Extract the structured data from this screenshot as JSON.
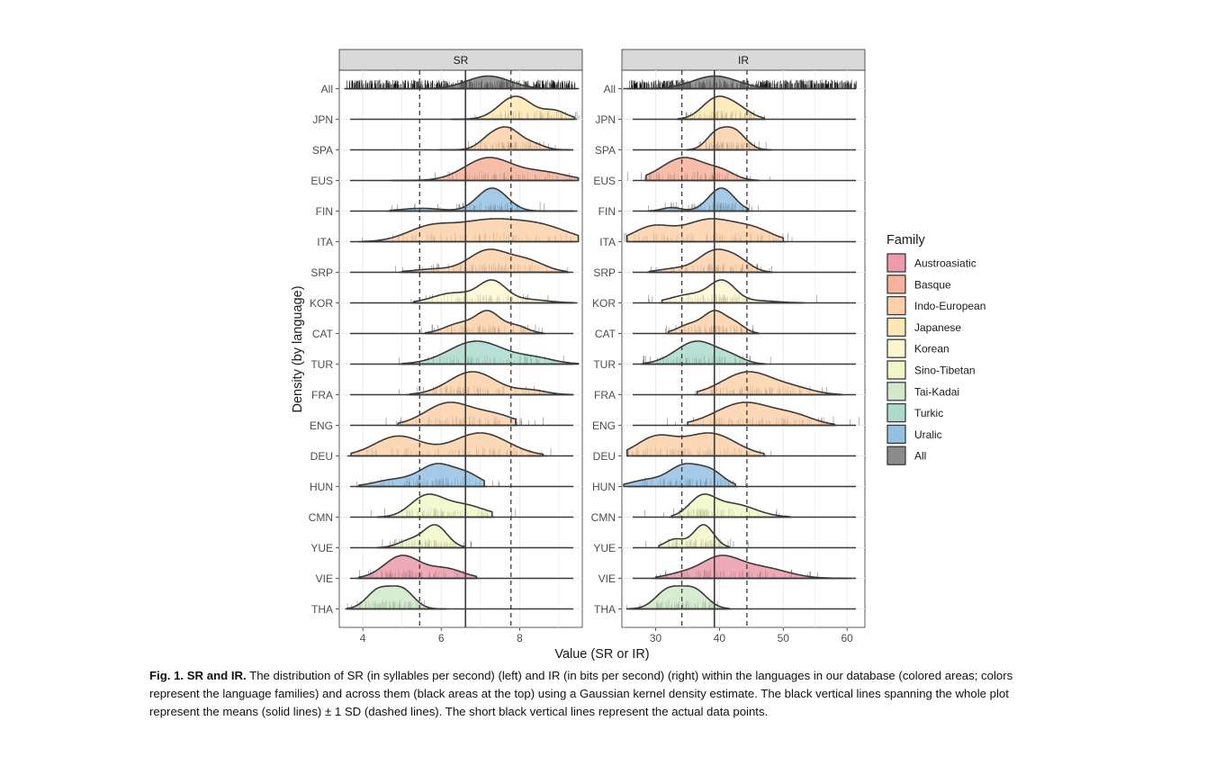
{
  "chart_data": [
    {
      "type": "ridgeline-density",
      "panel_title": "SR",
      "xlim": [
        3.4,
        9.6
      ],
      "x_ticks": [
        4,
        6,
        8
      ],
      "mean": 6.62,
      "mean_minus_sd": 5.45,
      "mean_plus_sd": 7.78,
      "series": [
        {
          "label": "All",
          "family": "All",
          "peaks": [
            [
              7.2,
              0.55,
              1.0
            ]
          ],
          "range": [
            3.6,
            9.5
          ]
        },
        {
          "label": "JPN",
          "family": "Japanese",
          "peaks": [
            [
              7.9,
              0.42,
              1.0
            ],
            [
              8.9,
              0.3,
              0.35
            ]
          ],
          "range": [
            6.3,
            9.4
          ]
        },
        {
          "label": "SPA",
          "family": "Indo-European",
          "peaks": [
            [
              7.3,
              0.3,
              0.75
            ],
            [
              7.75,
              0.28,
              0.9
            ],
            [
              8.3,
              0.3,
              0.35
            ]
          ],
          "range": [
            6.0,
            9.3
          ]
        },
        {
          "label": "EUS",
          "family": "Basque",
          "peaks": [
            [
              7.2,
              0.6,
              0.55
            ],
            [
              8.6,
              0.6,
              0.2
            ]
          ],
          "range": [
            4.8,
            9.5
          ]
        },
        {
          "label": "FIN",
          "family": "Uralic",
          "peaks": [
            [
              7.3,
              0.38,
              1.0
            ],
            [
              5.5,
              0.5,
              0.12
            ]
          ],
          "range": [
            4.7,
            9.4
          ]
        },
        {
          "label": "ITA",
          "family": "Indo-European",
          "peaks": [
            [
              5.7,
              0.6,
              0.2
            ],
            [
              7.2,
              0.8,
              0.3
            ],
            [
              8.6,
              0.7,
              0.2
            ]
          ],
          "range": [
            4.0,
            9.5
          ]
        },
        {
          "label": "SRP",
          "family": "Indo-European",
          "peaks": [
            [
              7.2,
              0.5,
              0.7
            ],
            [
              8.2,
              0.45,
              0.35
            ],
            [
              5.8,
              0.5,
              0.1
            ]
          ],
          "range": [
            5.0,
            9.2
          ]
        },
        {
          "label": "KOR",
          "family": "Korean",
          "peaks": [
            [
              7.3,
              0.35,
              0.75
            ],
            [
              6.3,
              0.5,
              0.35
            ],
            [
              8.2,
              0.5,
              0.12
            ]
          ],
          "range": [
            5.3,
            9.4
          ]
        },
        {
          "label": "CAT",
          "family": "Indo-European",
          "peaks": [
            [
              7.2,
              0.3,
              0.8
            ],
            [
              6.5,
              0.4,
              0.4
            ],
            [
              7.9,
              0.3,
              0.3
            ]
          ],
          "range": [
            5.6,
            8.6
          ]
        },
        {
          "label": "TUR",
          "family": "Turkic",
          "peaks": [
            [
              6.9,
              0.7,
              0.5
            ],
            [
              8.4,
              0.5,
              0.12
            ]
          ],
          "range": [
            5.0,
            9.5
          ]
        },
        {
          "label": "FRA",
          "family": "Indo-European",
          "peaks": [
            [
              6.8,
              0.6,
              0.55
            ],
            [
              8.3,
              0.4,
              0.1
            ]
          ],
          "range": [
            5.2,
            9.3
          ]
        },
        {
          "label": "ENG",
          "family": "Indo-European",
          "peaks": [
            [
              6.2,
              0.6,
              0.6
            ],
            [
              7.4,
              0.5,
              0.25
            ]
          ],
          "range": [
            4.9,
            7.9
          ]
        },
        {
          "label": "DEU",
          "family": "Indo-European",
          "peaks": [
            [
              4.9,
              0.6,
              0.3
            ],
            [
              7.0,
              0.7,
              0.35
            ]
          ],
          "range": [
            3.7,
            8.6
          ]
        },
        {
          "label": "HUN",
          "family": "Uralic",
          "peaks": [
            [
              5.9,
              0.45,
              0.65
            ],
            [
              6.7,
              0.35,
              0.3
            ],
            [
              4.8,
              0.5,
              0.2
            ]
          ],
          "range": [
            3.9,
            7.1
          ]
        },
        {
          "label": "CMN",
          "family": "Sino-Tibetan",
          "peaks": [
            [
              5.6,
              0.4,
              0.55
            ],
            [
              6.5,
              0.6,
              0.38
            ]
          ],
          "range": [
            4.4,
            7.3
          ]
        },
        {
          "label": "YUE",
          "family": "Sino-Tibetan",
          "peaks": [
            [
              5.85,
              0.3,
              0.95
            ],
            [
              5.2,
              0.3,
              0.3
            ]
          ],
          "range": [
            4.4,
            6.6
          ]
        },
        {
          "label": "VIE",
          "family": "Austroasiatic",
          "peaks": [
            [
              5.0,
              0.45,
              0.65
            ],
            [
              6.1,
              0.45,
              0.28
            ]
          ],
          "range": [
            3.9,
            6.9
          ]
        },
        {
          "label": "THA",
          "family": "Tai-Kadai",
          "peaks": [
            [
              4.4,
              0.3,
              0.6
            ],
            [
              5.0,
              0.3,
              0.62
            ]
          ],
          "range": [
            3.6,
            6.1
          ]
        }
      ]
    },
    {
      "type": "ridgeline-density",
      "panel_title": "IR",
      "xlim": [
        24.7,
        62.8
      ],
      "x_ticks": [
        30,
        40,
        50,
        60
      ],
      "mean": 39.2,
      "mean_minus_sd": 34.1,
      "mean_plus_sd": 44.3,
      "series": [
        {
          "label": "All",
          "family": "All",
          "peaks": [
            [
              39.3,
              3.5,
              1.0
            ]
          ],
          "range": [
            25.0,
            58.0
          ]
        },
        {
          "label": "JPN",
          "family": "Japanese",
          "peaks": [
            [
              39.5,
              2.2,
              1.0
            ],
            [
              43.0,
              2.0,
              0.45
            ]
          ],
          "range": [
            33.5,
            47.0
          ]
        },
        {
          "label": "SPA",
          "family": "Indo-European",
          "peaks": [
            [
              39.3,
              1.5,
              0.7
            ],
            [
              42.2,
              1.8,
              1.0
            ]
          ],
          "range": [
            35.0,
            48.0
          ]
        },
        {
          "label": "EUS",
          "family": "Basque",
          "peaks": [
            [
              34.5,
              3.5,
              0.7
            ],
            [
              40.5,
              2.0,
              0.2
            ]
          ],
          "range": [
            28.5,
            46.0
          ]
        },
        {
          "label": "FIN",
          "family": "Uralic",
          "peaks": [
            [
              40.3,
              2.0,
              1.0
            ],
            [
              32.5,
              1.5,
              0.15
            ]
          ],
          "range": [
            29.0,
            44.5
          ]
        },
        {
          "label": "ITA",
          "family": "Indo-European",
          "peaks": [
            [
              29.5,
              3.0,
              0.25
            ],
            [
              38.5,
              4.0,
              0.38
            ],
            [
              45.5,
              3.0,
              0.18
            ]
          ],
          "range": [
            25.5,
            50.0
          ]
        },
        {
          "label": "SRP",
          "family": "Indo-European",
          "peaks": [
            [
              39.2,
              2.5,
              0.7
            ],
            [
              43.0,
              2.0,
              0.32
            ],
            [
              33.0,
              2.5,
              0.12
            ]
          ],
          "range": [
            29.0,
            48.0
          ]
        },
        {
          "label": "KOR",
          "family": "Korean",
          "peaks": [
            [
              40.5,
              2.0,
              0.78
            ],
            [
              35.5,
              3.0,
              0.32
            ],
            [
              46.0,
              3.0,
              0.08
            ]
          ],
          "range": [
            31.0,
            53.0
          ]
        },
        {
          "label": "CAT",
          "family": "Indo-European",
          "peaks": [
            [
              39.3,
              1.7,
              0.8
            ],
            [
              35.5,
              2.0,
              0.35
            ],
            [
              42.5,
              1.5,
              0.35
            ]
          ],
          "range": [
            32.0,
            46.0
          ]
        },
        {
          "label": "TUR",
          "family": "Turkic",
          "peaks": [
            [
              36.5,
              3.3,
              0.55
            ],
            [
              42.0,
              2.0,
              0.12
            ]
          ],
          "range": [
            28.0,
            47.0
          ]
        },
        {
          "label": "FRA",
          "family": "Indo-European",
          "peaks": [
            [
              44.5,
              4.0,
              0.52
            ],
            [
              52.0,
              3.0,
              0.12
            ]
          ],
          "range": [
            36.5,
            59.0
          ]
        },
        {
          "label": "ENG",
          "family": "Indo-European",
          "peaks": [
            [
              44.0,
              4.5,
              0.6
            ],
            [
              52.0,
              3.0,
              0.2
            ]
          ],
          "range": [
            35.0,
            58.0
          ]
        },
        {
          "label": "DEU",
          "family": "Indo-European",
          "peaks": [
            [
              30.0,
              3.0,
              0.28
            ],
            [
              38.5,
              4.0,
              0.35
            ]
          ],
          "range": [
            25.5,
            47.0
          ]
        },
        {
          "label": "HUN",
          "family": "Uralic",
          "peaks": [
            [
              34.5,
              2.5,
              0.62
            ],
            [
              38.8,
              2.0,
              0.38
            ],
            [
              28.5,
              2.5,
              0.18
            ]
          ],
          "range": [
            25.0,
            42.5
          ]
        },
        {
          "label": "CMN",
          "family": "Sino-Tibetan",
          "peaks": [
            [
              37.2,
              2.0,
              0.5
            ],
            [
              42.0,
              3.5,
              0.38
            ]
          ],
          "range": [
            32.5,
            51.0
          ]
        },
        {
          "label": "YUE",
          "family": "Sino-Tibetan",
          "peaks": [
            [
              37.5,
              1.6,
              0.95
            ],
            [
              33.0,
              1.5,
              0.35
            ]
          ],
          "range": [
            30.5,
            41.5
          ]
        },
        {
          "label": "VIE",
          "family": "Austroasiatic",
          "peaks": [
            [
              40.0,
              3.0,
              0.55
            ],
            [
              46.5,
              4.0,
              0.3
            ],
            [
              34.0,
              2.5,
              0.12
            ]
          ],
          "range": [
            30.0,
            60.0
          ]
        },
        {
          "label": "THA",
          "family": "Tai-Kadai",
          "peaks": [
            [
              32.0,
              2.0,
              0.55
            ],
            [
              36.0,
              2.0,
              0.55
            ]
          ],
          "range": [
            25.5,
            41.5
          ]
        }
      ]
    }
  ],
  "axes": {
    "xlabel": "Value (SR or IR)",
    "ylabel": "Density (by language)"
  },
  "legend": {
    "title": "Family",
    "placement": "right",
    "items": [
      {
        "name": "Austroasiatic",
        "color": "#e8899a"
      },
      {
        "name": "Basque",
        "color": "#f4a488"
      },
      {
        "name": "Indo-European",
        "color": "#fbc99a"
      },
      {
        "name": "Japanese",
        "color": "#fde3a5"
      },
      {
        "name": "Korean",
        "color": "#fdf6c9"
      },
      {
        "name": "Sino-Tibetan",
        "color": "#eef5bd"
      },
      {
        "name": "Tai-Kadai",
        "color": "#c9e5c1"
      },
      {
        "name": "Turkic",
        "color": "#9ed4c3"
      },
      {
        "name": "Uralic",
        "color": "#82b6de"
      },
      {
        "name": "All",
        "color": "#777777"
      }
    ]
  },
  "caption": {
    "label": "Fig. 1.  SR and IR.",
    "text": " The distribution of SR (in syllables per second) (left) and IR (in bits per second) (right) within the languages in our database (colored areas; colors represent the language families) and across them (black areas at the top) using a Gaussian kernel density estimate. The black vertical lines spanning the whole plot represent the means (solid lines) ± 1 SD (dashed lines). The short black vertical lines represent the actual data points."
  }
}
